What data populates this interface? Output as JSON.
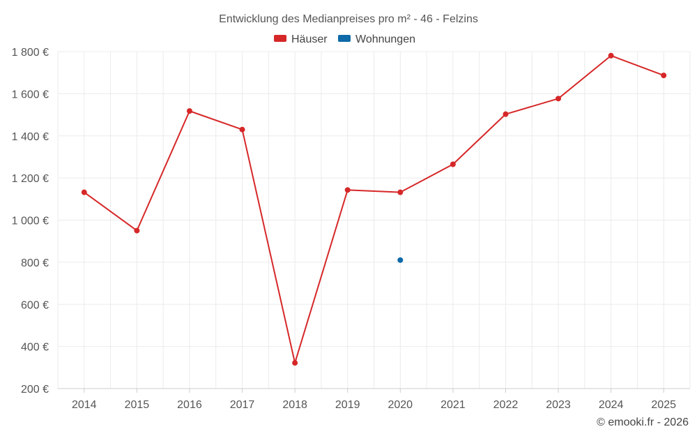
{
  "chart_data": {
    "type": "line",
    "title": "Entwicklung des Medianpreises pro m² - 46 - Felzins",
    "categories": [
      "2014",
      "2015",
      "2016",
      "2017",
      "2018",
      "2019",
      "2020",
      "2021",
      "2022",
      "2023",
      "2024",
      "2025"
    ],
    "series": [
      {
        "name": "Häuser",
        "color": "#d62728",
        "values": [
          1132,
          950,
          1518,
          1430,
          322,
          1143,
          1132,
          1265,
          1503,
          1577,
          1781,
          1687
        ]
      },
      {
        "name": "Wohnungen",
        "color": "#0e6aa8",
        "values": [
          null,
          null,
          null,
          null,
          null,
          null,
          810,
          null,
          null,
          null,
          null,
          null
        ]
      }
    ],
    "ylim": [
      200,
      1800
    ],
    "yticks": [
      200,
      400,
      600,
      800,
      1000,
      1200,
      1400,
      1600,
      1800
    ],
    "ytick_labels": [
      "200 €",
      "400 €",
      "600 €",
      "800 €",
      "1 000 €",
      "1 200 €",
      "1 400 €",
      "1 600 €",
      "1 800 €"
    ],
    "xlabel": "",
    "ylabel": "",
    "grid": true,
    "legend_position": "top-center"
  },
  "credit": "© emooki.fr - 2026"
}
